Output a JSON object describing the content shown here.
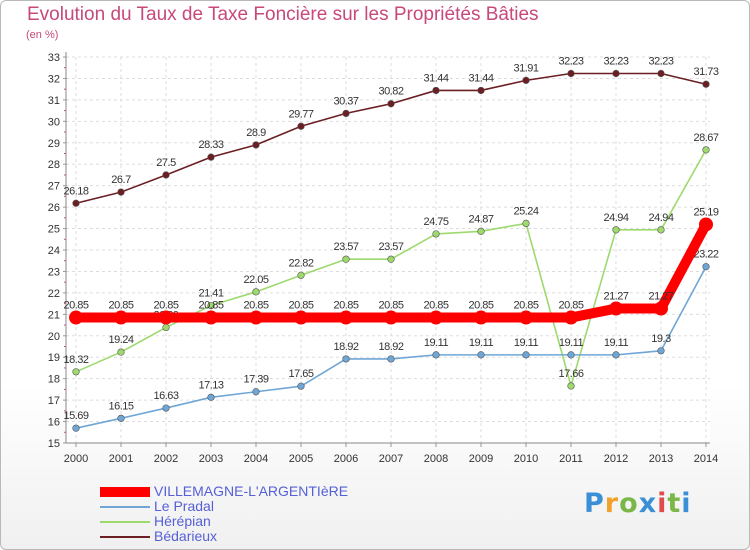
{
  "title": "Evolution du Taux de Taxe Foncière sur les Propriétés Bâties",
  "unit_label": "(en %)",
  "logo": {
    "letters": [
      "P",
      "r",
      "o",
      "x",
      "i",
      "t",
      "i"
    ],
    "colors": [
      "#3a8fd6",
      "#f2a12c",
      "#7ab648",
      "#3a8fd6",
      "#e14b4b",
      "#7ab648",
      "#3a8fd6"
    ]
  },
  "chart_data": {
    "type": "line",
    "title": "Evolution du Taux de Taxe Foncière sur les Propriétés Bâties",
    "ylabel": "(en %)",
    "xlabel": "",
    "x": [
      "2000",
      "2001",
      "2002",
      "2003",
      "2004",
      "2005",
      "2006",
      "2007",
      "2008",
      "2009",
      "2010",
      "2011",
      "2012",
      "2013",
      "2014"
    ],
    "ylim": [
      15,
      33
    ],
    "yticks": [
      "15",
      "16",
      "17",
      "18",
      "19",
      "20",
      "21",
      "22",
      "23",
      "24",
      "25",
      "26",
      "27",
      "28",
      "29",
      "30",
      "31",
      "32",
      "33"
    ],
    "grid": true,
    "legend_position": "bottom-left",
    "series": [
      {
        "name": "Bédarieux",
        "color": "#6b1f23",
        "values": [
          26.18,
          26.7,
          27.5,
          28.33,
          28.9,
          29.77,
          30.37,
          30.82,
          31.44,
          31.44,
          31.91,
          32.23,
          32.23,
          32.23,
          31.73
        ],
        "labels": [
          "26.18",
          "26.7",
          "27.5",
          "28.33",
          "28.9",
          "29.77",
          "30.37",
          "30.82",
          "31.44",
          "31.44",
          "31.91",
          "32.23",
          "32.23",
          "32.23",
          "31.73"
        ]
      },
      {
        "name": "Hérépian",
        "color": "#9ed96e",
        "values": [
          18.32,
          19.24,
          20.39,
          21.41,
          22.05,
          22.82,
          23.57,
          23.57,
          24.75,
          24.87,
          25.24,
          17.66,
          24.94,
          24.94,
          28.67
        ],
        "labels": [
          "18.32",
          "19.24",
          "20.39",
          "21.41",
          "22.05",
          "22.82",
          "23.57",
          "23.57",
          "24.75",
          "24.87",
          "25.24",
          "17.66",
          "24.94",
          "24.94",
          "28.67"
        ]
      },
      {
        "name": "Le Pradal",
        "color": "#6fa6d6",
        "values": [
          15.69,
          16.15,
          16.63,
          17.13,
          17.39,
          17.65,
          18.92,
          18.92,
          19.11,
          19.11,
          19.11,
          19.11,
          19.11,
          19.3,
          23.22
        ],
        "labels": [
          "15.69",
          "16.15",
          "16.63",
          "17.13",
          "17.39",
          "17.65",
          "18.92",
          "18.92",
          "19.11",
          "19.11",
          "19.11",
          "19.11",
          "19.11",
          "19.3",
          "23.22"
        ]
      },
      {
        "name": "VILLEMAGNE-L'ARGENTIèRE",
        "color": "#ff0000",
        "values": [
          20.85,
          20.85,
          20.85,
          20.85,
          20.85,
          20.85,
          20.85,
          20.85,
          20.85,
          20.85,
          20.85,
          20.85,
          21.27,
          21.27,
          25.19
        ],
        "labels": [
          "20.85",
          "20.85",
          "20.85",
          "20.85",
          "20.85",
          "20.85",
          "20.85",
          "20.85",
          "20.85",
          "20.85",
          "20.85",
          "20.85",
          "21.27",
          "21.27",
          "25.19"
        ]
      }
    ],
    "legend": [
      "VILLEMAGNE-L'ARGENTIèRE",
      "Le Pradal",
      "Hérépian",
      "Bédarieux"
    ]
  }
}
